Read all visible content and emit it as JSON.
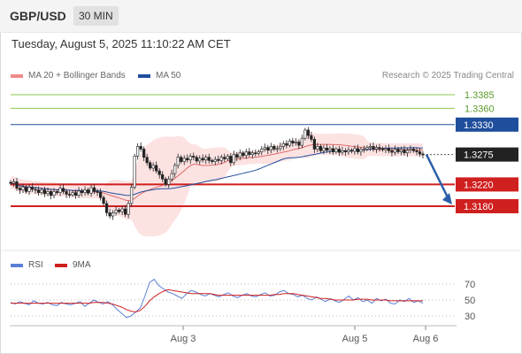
{
  "header": {
    "symbol": "GBP/USD",
    "timeframe": "30 MIN"
  },
  "datetime": "Tuesday, August 5, 2025 11:10:22 AM CET",
  "legend": {
    "items": [
      {
        "label": "MA 20 + Bollinger Bands",
        "color": "#f08a8a"
      },
      {
        "label": "MA 50",
        "color": "#1f4e9c"
      }
    ],
    "research": "Research © 2025 Trading Central"
  },
  "rsi_legend": {
    "items": [
      {
        "label": "RSI",
        "color": "#5b7fd4"
      },
      {
        "label": "9MA",
        "color": "#d01f1f"
      }
    ]
  },
  "chart_data": [
    {
      "type": "candlestick",
      "title": "GBP/USD",
      "x_ticks": [
        "Aug 3",
        "Aug 5",
        "Aug 6"
      ],
      "price_levels": [
        {
          "label": "1.3385",
          "value": 1.3385,
          "color": "#8dc44b",
          "kind": "line"
        },
        {
          "label": "1.3360",
          "value": 1.336,
          "color": "#8dc44b",
          "kind": "line"
        },
        {
          "label": "1.3330",
          "value": 1.333,
          "color": "#1f4e9c",
          "kind": "box"
        },
        {
          "label": "1.3275",
          "value": 1.3275,
          "color": "#222222",
          "kind": "box"
        },
        {
          "label": "1.3220",
          "value": 1.322,
          "color": "#d01f1f",
          "kind": "box"
        },
        {
          "label": "1.3180",
          "value": 1.318,
          "color": "#d01f1f",
          "kind": "box"
        }
      ],
      "current_price": 1.3275,
      "forecast_arrow": {
        "from": 1.3275,
        "to": 1.318,
        "color": "#2b5ea7"
      },
      "series": [
        {
          "name": "GBP/USD",
          "values": [
            1.3222,
            1.3225,
            1.3213,
            1.321,
            1.3215,
            1.3207,
            1.3215,
            1.3211,
            1.321,
            1.3205,
            1.321,
            1.3203,
            1.3207,
            1.32,
            1.3207,
            1.3205,
            1.3213,
            1.3207,
            1.3202,
            1.3201,
            1.3205,
            1.32,
            1.3208,
            1.3205,
            1.321,
            1.3204,
            1.3214,
            1.3207,
            1.3206,
            1.3196,
            1.3185,
            1.3168,
            1.3162,
            1.3168,
            1.3173,
            1.317,
            1.3175,
            1.3165,
            1.3185,
            1.3215,
            1.3272,
            1.329,
            1.3285,
            1.327,
            1.326,
            1.325,
            1.3255,
            1.3245,
            1.3238,
            1.323,
            1.322,
            1.323,
            1.324,
            1.3255,
            1.327,
            1.3262,
            1.3268,
            1.3265,
            1.3272,
            1.327,
            1.3263,
            1.3268,
            1.3265,
            1.327,
            1.3264,
            1.3262,
            1.3266,
            1.3264,
            1.327,
            1.3267,
            1.3272,
            1.326,
            1.3275,
            1.327,
            1.3278,
            1.3273,
            1.328,
            1.3275,
            1.3278,
            1.3277,
            1.328,
            1.3285,
            1.3288,
            1.3283,
            1.329,
            1.3285,
            1.3286,
            1.329,
            1.3295,
            1.3292,
            1.33,
            1.3296,
            1.3298,
            1.3292,
            1.3305,
            1.332,
            1.331,
            1.3303,
            1.3285,
            1.329,
            1.3282,
            1.3287,
            1.3283,
            1.3286,
            1.328,
            1.3285,
            1.3279,
            1.3282,
            1.328,
            1.3283,
            1.3281,
            1.3286,
            1.328,
            1.3284,
            1.3285,
            1.3288,
            1.329,
            1.3285,
            1.3288,
            1.3286,
            1.3284,
            1.3286,
            1.3282,
            1.3279,
            1.3285,
            1.328,
            1.3284,
            1.3278,
            1.3283,
            1.3285,
            1.3282,
            1.328,
            1.3276,
            1.3275
          ]
        }
      ],
      "overlays": [
        {
          "name": "MA 20",
          "color": "#f08a8a"
        },
        {
          "name": "MA 50",
          "color": "#1f4e9c"
        }
      ]
    },
    {
      "type": "line",
      "title": "RSI",
      "ylim": [
        20,
        80
      ],
      "y_ticks": [
        70,
        50,
        30
      ],
      "x_ticks": [
        "Aug 3",
        "Aug 5",
        "Aug 6"
      ],
      "series": [
        {
          "name": "RSI",
          "color": "#5b7fd4",
          "values": [
            47,
            45,
            48,
            46,
            44,
            49,
            46,
            45,
            47,
            44,
            43,
            47,
            45,
            44,
            46,
            48,
            42,
            46,
            50,
            47,
            45,
            48,
            44,
            38,
            33,
            28,
            30,
            35,
            40,
            55,
            72,
            76,
            68,
            64,
            60,
            58,
            55,
            52,
            58,
            62,
            60,
            57,
            55,
            58,
            56,
            54,
            57,
            59,
            55,
            53,
            56,
            58,
            55,
            54,
            57,
            59,
            55,
            56,
            60,
            62,
            58,
            57,
            54,
            56,
            52,
            50,
            54,
            51,
            48,
            52,
            49,
            47,
            51,
            55,
            50,
            53,
            48,
            50,
            46,
            52,
            49,
            51,
            46,
            45,
            50,
            48,
            52,
            47,
            49,
            46
          ]
        },
        {
          "name": "9MA",
          "color": "#d01f1f",
          "values": [
            46,
            46,
            46,
            46,
            46,
            46,
            46,
            46,
            46,
            46,
            46,
            46,
            46,
            46,
            46,
            46,
            46,
            46,
            47,
            47,
            47,
            46,
            45,
            43,
            41,
            38,
            36,
            35,
            37,
            42,
            49,
            54,
            58,
            61,
            63,
            62,
            61,
            60,
            59,
            58,
            58,
            58,
            58,
            58,
            57,
            56,
            56,
            56,
            56,
            56,
            56,
            56,
            56,
            56,
            56,
            56,
            56,
            57,
            57,
            58,
            58,
            58,
            57,
            56,
            55,
            54,
            53,
            52,
            52,
            51,
            50,
            50,
            50,
            50,
            50,
            51,
            51,
            51,
            50,
            50,
            50,
            50,
            49,
            49,
            49,
            49,
            49,
            49,
            49,
            49
          ]
        }
      ]
    }
  ]
}
